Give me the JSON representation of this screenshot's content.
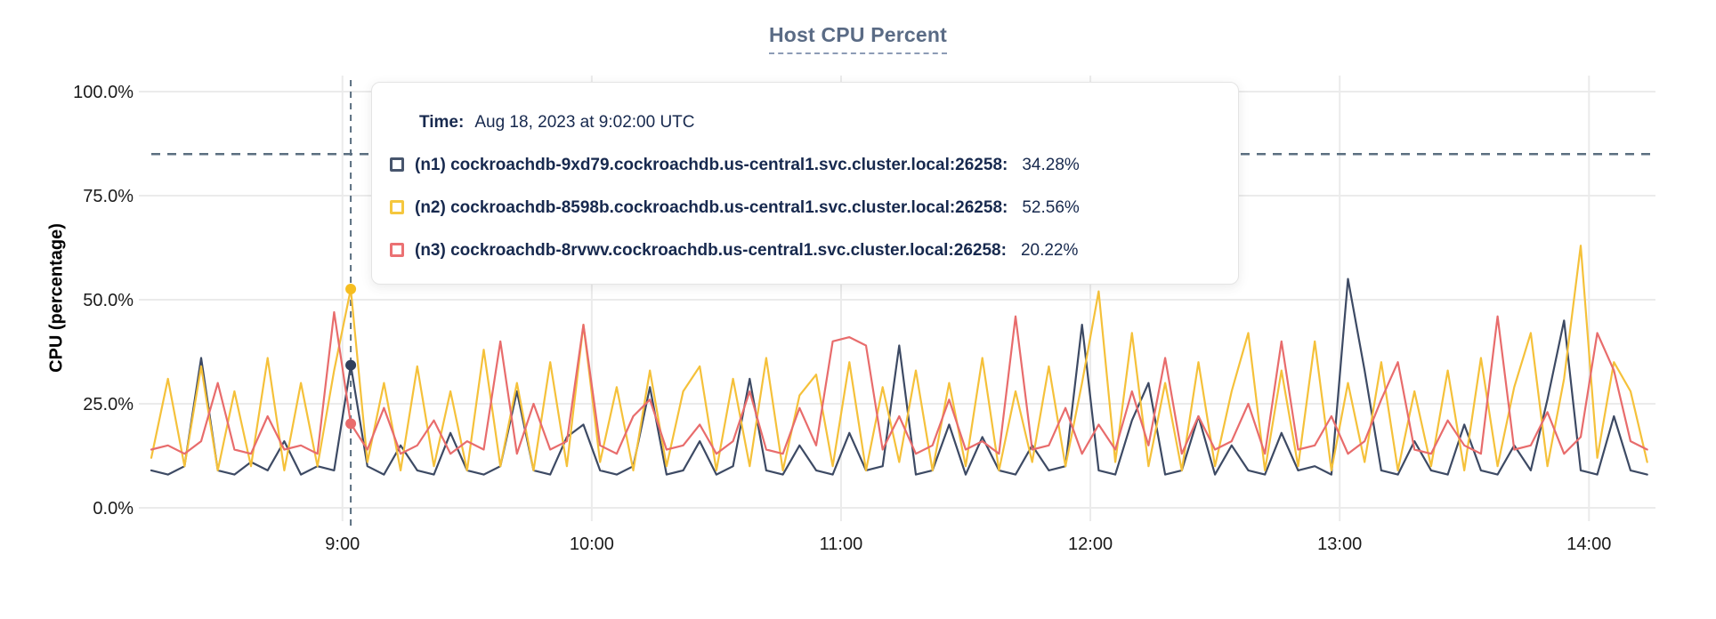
{
  "title": "Host CPU Percent",
  "y_axis_title": "CPU (percentage)",
  "tooltip": {
    "time_label": "Time:",
    "time_value": "Aug 18, 2023 at 9:02:00 UTC",
    "series": [
      {
        "id": "n1",
        "label": "(n1) cockroachdb-9xd79.cockroachdb.us-central1.svc.cluster.local:26258:",
        "value": "34.28%",
        "swatch_color": "#47556d"
      },
      {
        "id": "n2",
        "label": "(n2) cockroachdb-8598b.cockroachdb.us-central1.svc.cluster.local:26258:",
        "value": "52.56%",
        "swatch_color": "#f5c73e"
      },
      {
        "id": "n3",
        "label": "(n3) cockroachdb-8rvwv.cockroachdb.us-central1.svc.cluster.local:26258:",
        "value": "20.22%",
        "swatch_color": "#eb7173"
      }
    ]
  },
  "colors": {
    "grid": "#ebebeb",
    "axis_text": "#1a1a1a",
    "dashed_guides": "#5b6f80",
    "title_text": "#5a6b85",
    "tooltip_text": "#17294e"
  },
  "chart_data": {
    "type": "line",
    "title": "Host CPU Percent",
    "xlabel": "",
    "ylabel": "CPU (percentage)",
    "ylim": [
      0,
      100
    ],
    "grid": true,
    "legend_position": "tooltip-overlay",
    "y_ticks": [
      {
        "value": 0,
        "label": "0.0%"
      },
      {
        "value": 25,
        "label": "25.0%"
      },
      {
        "value": 50,
        "label": "50.0%"
      },
      {
        "value": 75,
        "label": "75.0%"
      },
      {
        "value": 100,
        "label": "100.0%"
      }
    ],
    "x_ticks": [
      {
        "minute": 540,
        "label": "9:00"
      },
      {
        "minute": 600,
        "label": "10:00"
      },
      {
        "minute": 660,
        "label": "11:00"
      },
      {
        "minute": 720,
        "label": "12:00"
      },
      {
        "minute": 780,
        "label": "13:00"
      },
      {
        "minute": 840,
        "label": "14:00"
      }
    ],
    "x_domain_minutes": [
      494,
      856
    ],
    "x_start_minute": 494,
    "x_step_minutes": 4,
    "threshold_percent": 85,
    "hover": {
      "minute": 542,
      "time": "Aug 18, 2023 at 9:02:00 UTC",
      "points": [
        {
          "series": "n1",
          "value": 34.28
        },
        {
          "series": "n2",
          "value": 52.56
        },
        {
          "series": "n3",
          "value": 20.22
        }
      ]
    },
    "series": [
      {
        "name": "n1",
        "color": "#3d4a64",
        "dot_color": "#31405c",
        "values": [
          9,
          8,
          10,
          36,
          9,
          8,
          11,
          9,
          16,
          8,
          10,
          9,
          34.28,
          10,
          8,
          15,
          9,
          8,
          18,
          9,
          8,
          10,
          28,
          9,
          8,
          17,
          20,
          9,
          8,
          10,
          29,
          8,
          9,
          16,
          8,
          10,
          31,
          9,
          8,
          15,
          9,
          8,
          18,
          9,
          10,
          39,
          8,
          9,
          20,
          8,
          17,
          9,
          8,
          15,
          9,
          10,
          44,
          9,
          8,
          21,
          30,
          8,
          9,
          22,
          8,
          15,
          9,
          8,
          18,
          9,
          10,
          8,
          55,
          33,
          9,
          8,
          16,
          9,
          8,
          20,
          9,
          8,
          15,
          9,
          26,
          45,
          9,
          8,
          22,
          9,
          8
        ]
      },
      {
        "name": "n2",
        "color": "#f5c13a",
        "dot_color": "#f6be20",
        "values": [
          12,
          31,
          10,
          34,
          9,
          28,
          10,
          36,
          9,
          30,
          10,
          33,
          52.56,
          11,
          30,
          9,
          34,
          10,
          28,
          9,
          38,
          10,
          30,
          9,
          35,
          10,
          44,
          11,
          29,
          9,
          33,
          10,
          28,
          34,
          9,
          31,
          10,
          36,
          9,
          27,
          32,
          10,
          35,
          9,
          29,
          11,
          33,
          9,
          30,
          10,
          36,
          9,
          28,
          11,
          34,
          10,
          30,
          52,
          11,
          42,
          10,
          30,
          9,
          35,
          10,
          28,
          42,
          9,
          33,
          10,
          40,
          9,
          30,
          11,
          35,
          9,
          28,
          10,
          33,
          9,
          36,
          10,
          29,
          42,
          10,
          31,
          63,
          12,
          35,
          28,
          11
        ]
      },
      {
        "name": "n3",
        "color": "#e86c6c",
        "dot_color": "#e96c6c",
        "values": [
          14,
          15,
          13,
          16,
          30,
          14,
          13,
          22,
          14,
          15,
          13,
          47,
          20.22,
          14,
          24,
          13,
          15,
          21,
          13,
          16,
          14,
          40,
          13,
          25,
          14,
          16,
          44,
          15,
          13,
          22,
          26,
          14,
          15,
          20,
          13,
          16,
          28,
          14,
          13,
          24,
          15,
          40,
          41,
          39,
          14,
          22,
          13,
          15,
          26,
          14,
          16,
          13,
          46,
          14,
          15,
          24,
          13,
          20,
          14,
          28,
          15,
          36,
          13,
          22,
          14,
          16,
          25,
          13,
          40,
          14,
          15,
          22,
          13,
          16,
          26,
          35,
          14,
          13,
          21,
          15,
          13,
          46,
          14,
          15,
          23,
          13,
          17,
          42,
          33,
          16,
          14
        ]
      }
    ]
  }
}
